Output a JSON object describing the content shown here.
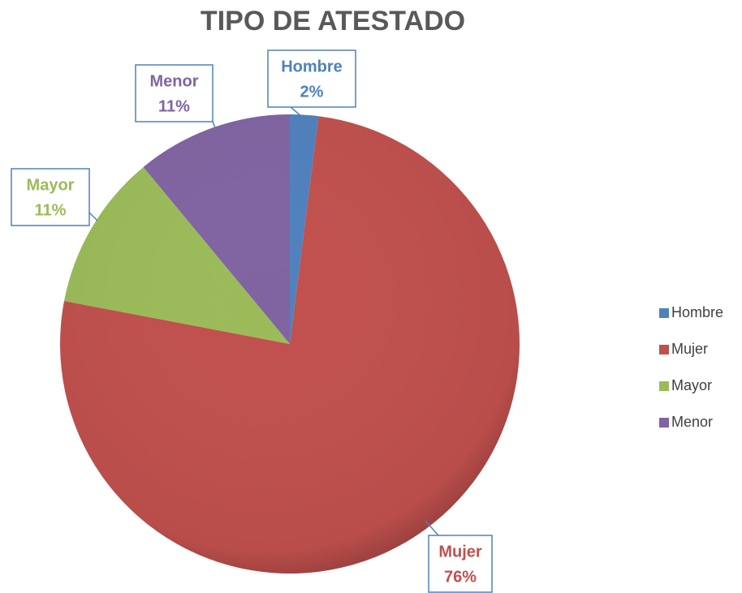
{
  "chart_data": {
    "type": "pie",
    "title": "TIPO DE ATESTADO",
    "categories": [
      "Hombre",
      "Mujer",
      "Mayor",
      "Menor"
    ],
    "values": [
      2,
      76,
      11,
      11
    ],
    "value_labels": [
      "2%",
      "76%",
      "11%",
      "11%"
    ],
    "colors": [
      "#4f81bd",
      "#c0504d",
      "#9bbb59",
      "#8064a2"
    ],
    "legend": "right"
  }
}
